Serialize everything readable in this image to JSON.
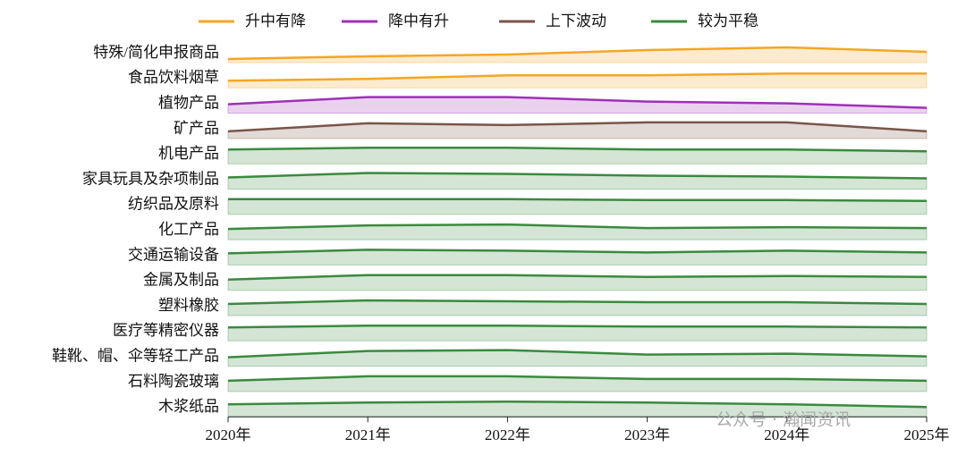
{
  "chart_data": {
    "type": "ridgeline",
    "legend": [
      {
        "name": "升中有降",
        "color": "#f5a623"
      },
      {
        "name": "降中有升",
        "color": "#a030b8"
      },
      {
        "name": "上下波动",
        "color": "#7a5548"
      },
      {
        "name": "较为平稳",
        "color": "#3a8a3e"
      }
    ],
    "x": [
      2020,
      2021,
      2022,
      2023,
      2024,
      2025
    ],
    "xlim": [
      2020,
      2025
    ],
    "xticks": [
      {
        "value": 2020,
        "label": "2020年"
      },
      {
        "value": 2021,
        "label": "2021年"
      },
      {
        "value": 2022,
        "label": "2022年"
      },
      {
        "value": 2023,
        "label": "2023年"
      },
      {
        "value": 2024,
        "label": "2024年"
      },
      {
        "value": 2025,
        "label": "2025年"
      }
    ],
    "ylim": [
      0,
      20
    ],
    "series": [
      {
        "name": "特殊/简化申报商品",
        "group": 0,
        "values": [
          4,
          7,
          9,
          14,
          17,
          12
        ]
      },
      {
        "name": "食品饮料烟草",
        "group": 0,
        "values": [
          8,
          10,
          14,
          14,
          16,
          16
        ]
      },
      {
        "name": "植物产品",
        "group": 1,
        "values": [
          10,
          18,
          18,
          13,
          11,
          6
        ]
      },
      {
        "name": "矿产品",
        "group": 2,
        "values": [
          8,
          17,
          15,
          18,
          18,
          8
        ]
      },
      {
        "name": "机电产品",
        "group": 3,
        "values": [
          16,
          18,
          18,
          16,
          16,
          14
        ]
      },
      {
        "name": "家具玩具及杂项制品",
        "group": 3,
        "values": [
          13,
          18,
          17,
          15,
          14,
          12
        ]
      },
      {
        "name": "纺织品及原料",
        "group": 3,
        "values": [
          17,
          17,
          17,
          16,
          16,
          15
        ]
      },
      {
        "name": "化工产品",
        "group": 3,
        "values": [
          12,
          16,
          17,
          13,
          14,
          13
        ]
      },
      {
        "name": "交通运输设备",
        "group": 3,
        "values": [
          13,
          17,
          16,
          14,
          16,
          14
        ]
      },
      {
        "name": "金属及制品",
        "group": 3,
        "values": [
          12,
          17,
          17,
          15,
          16,
          15
        ]
      },
      {
        "name": "塑料橡胶",
        "group": 3,
        "values": [
          13,
          17,
          16,
          15,
          15,
          13
        ]
      },
      {
        "name": "医疗等精密仪器",
        "group": 3,
        "values": [
          15,
          17,
          17,
          16,
          16,
          15
        ]
      },
      {
        "name": "鞋靴、帽、伞等轻工产品",
        "group": 3,
        "values": [
          10,
          17,
          18,
          13,
          14,
          11
        ]
      },
      {
        "name": "石料陶瓷玻璃",
        "group": 3,
        "values": [
          12,
          17,
          17,
          14,
          14,
          12
        ]
      },
      {
        "name": "木浆纸品",
        "group": 3,
        "values": [
          14,
          16,
          17,
          16,
          14,
          11
        ]
      }
    ],
    "annotation": "公众号 · 瀚闻资讯"
  }
}
